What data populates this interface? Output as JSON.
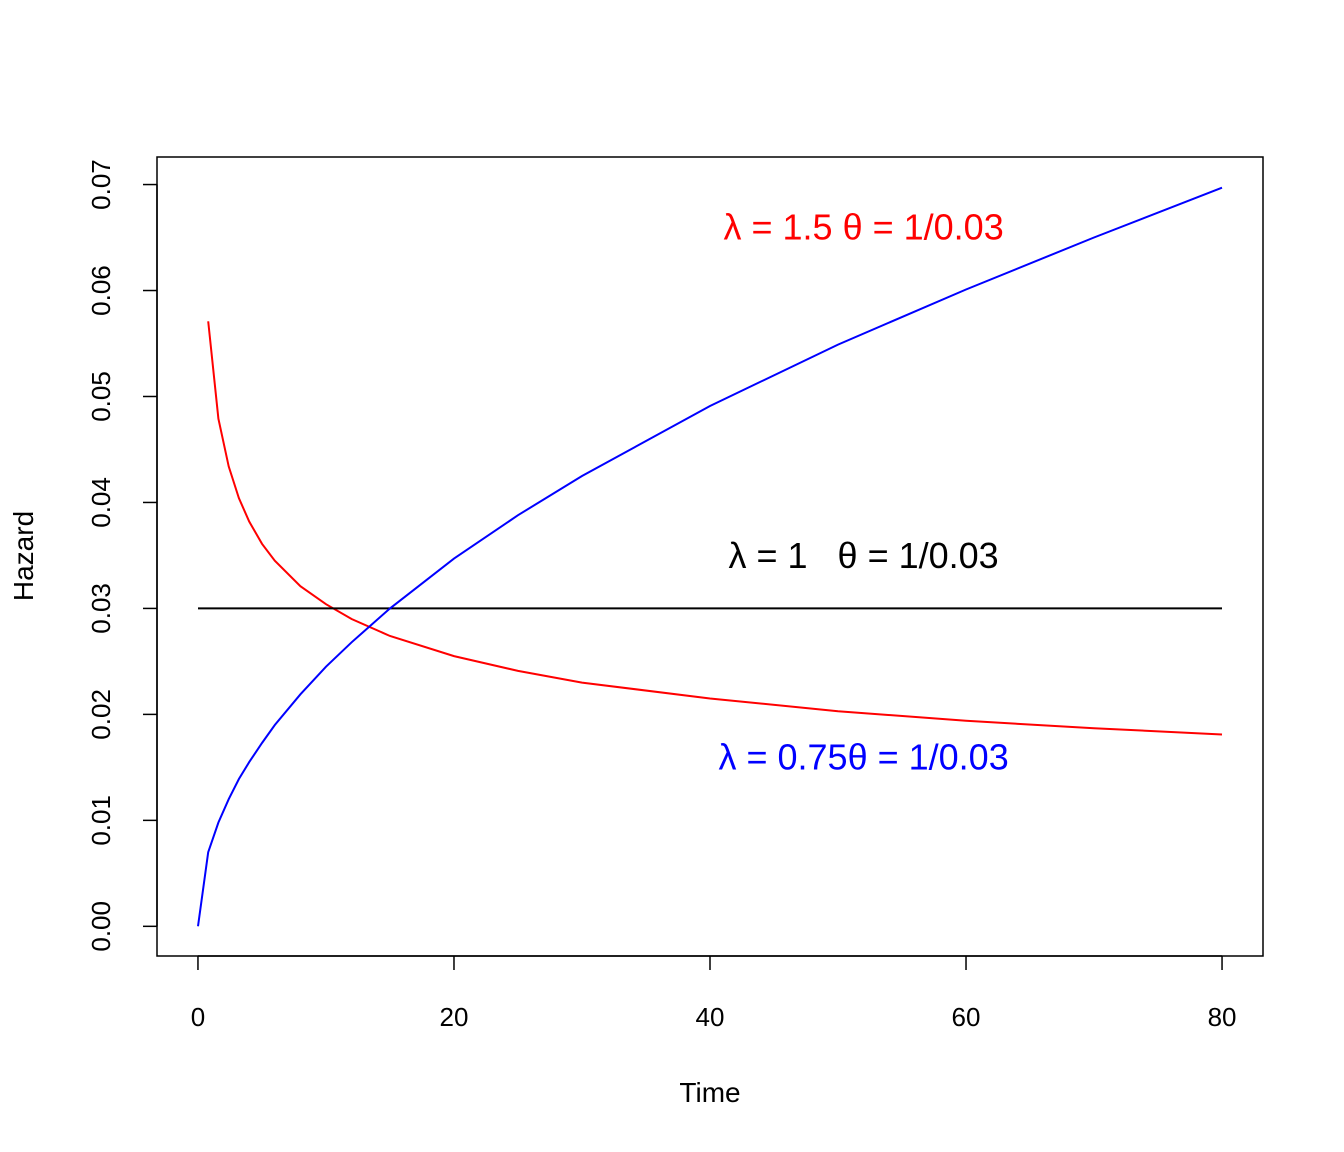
{
  "chart_data": {
    "type": "line",
    "title": "",
    "xlabel": "Time",
    "ylabel": "Hazard",
    "xlim": [
      -3.2,
      83.2
    ],
    "ylim": [
      -0.0028,
      0.0726
    ],
    "xticks": [
      0,
      20,
      40,
      60,
      80
    ],
    "xtick_labels": [
      "0",
      "20",
      "40",
      "60",
      "80"
    ],
    "yticks": [
      0.0,
      0.01,
      0.02,
      0.03,
      0.04,
      0.05,
      0.06,
      0.07
    ],
    "ytick_labels": [
      "0.00",
      "0.01",
      "0.02",
      "0.03",
      "0.04",
      "0.05",
      "0.06",
      "0.07"
    ],
    "grid": false,
    "series": [
      {
        "color": "#ff0000",
        "x": [
          0.8,
          1.6,
          2.4,
          3.2,
          4,
          5,
          6,
          8,
          10,
          12,
          15,
          20,
          25,
          30,
          40,
          50,
          60,
          70,
          80
        ],
        "y": [
          0.0571,
          0.0479,
          0.0434,
          0.0404,
          0.0382,
          0.0361,
          0.0345,
          0.0321,
          0.0304,
          0.029,
          0.0274,
          0.0255,
          0.0241,
          0.023,
          0.0215,
          0.0203,
          0.0194,
          0.0187,
          0.0181
        ]
      },
      {
        "color": "#000000",
        "x": [
          0,
          80
        ],
        "y": [
          0.03,
          0.03
        ]
      },
      {
        "color": "#0000ff",
        "x": [
          0,
          0.8,
          1.6,
          2.4,
          3.2,
          4,
          5,
          6,
          8,
          10,
          12,
          15,
          20,
          25,
          30,
          40,
          50,
          60,
          70,
          80
        ],
        "y": [
          0.0,
          0.007,
          0.0098,
          0.012,
          0.0139,
          0.0155,
          0.0173,
          0.019,
          0.0219,
          0.0245,
          0.0268,
          0.03,
          0.0347,
          0.0388,
          0.0425,
          0.0491,
          0.0549,
          0.0601,
          0.065,
          0.0697
        ]
      }
    ],
    "annotations": [
      {
        "text": "λ = 1.5 θ = 1/0.03",
        "color": "#ff0000",
        "x": 52,
        "y": 0.0648
      },
      {
        "text": "λ = 1   θ = 1/0.03",
        "color": "#000000",
        "x": 52,
        "y": 0.0338
      },
      {
        "text": "λ = 0.75θ = 1/0.03",
        "color": "#0000ff",
        "x": 52,
        "y": 0.0148
      }
    ]
  }
}
